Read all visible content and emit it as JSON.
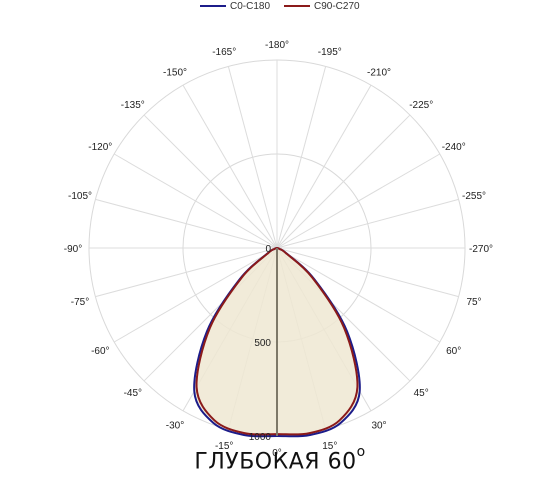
{
  "chart_data": {
    "type": "polar",
    "legend": [
      {
        "name": "C0-C180",
        "color": "#1c1c8a"
      },
      {
        "name": "C90-C270",
        "color": "#8b1a1a"
      }
    ],
    "legend_position": "top-center",
    "radial_range": [
      0,
      1000
    ],
    "radial_ticks": [
      0,
      500,
      1000
    ],
    "angular_ticks": [
      "0°",
      "15°",
      "30°",
      "45°",
      "60°",
      "75°",
      "-270°",
      "-255°",
      "-240°",
      "-225°",
      "-210°",
      "-195°",
      "-180°",
      "-165°",
      "-150°",
      "-135°",
      "-120°",
      "-105°",
      "-90°",
      "-75°",
      "-60°",
      "-45°",
      "-30°",
      "-15°"
    ],
    "grid": true,
    "fill_color": "#eee8d2",
    "series": [
      {
        "name": "C0-C180",
        "angles": [
          -90,
          -80,
          -70,
          -60,
          -50,
          -40,
          -30,
          -20,
          -10,
          0,
          10,
          20,
          30,
          40,
          50,
          60,
          70,
          80,
          90
        ],
        "values": [
          0,
          5,
          15,
          60,
          260,
          580,
          880,
          990,
          1010,
          1000,
          1010,
          990,
          880,
          580,
          260,
          60,
          15,
          5,
          0
        ]
      },
      {
        "name": "C90-C270",
        "angles": [
          -90,
          -80,
          -70,
          -60,
          -50,
          -40,
          -30,
          -20,
          -10,
          0,
          10,
          20,
          30,
          40,
          50,
          60,
          70,
          80,
          90
        ],
        "values": [
          0,
          5,
          15,
          55,
          245,
          555,
          855,
          975,
          1000,
          990,
          1000,
          975,
          855,
          555,
          245,
          55,
          15,
          5,
          0
        ]
      }
    ]
  },
  "caption": {
    "text": "ГЛУБОКАЯ 60",
    "superscript": "o"
  }
}
